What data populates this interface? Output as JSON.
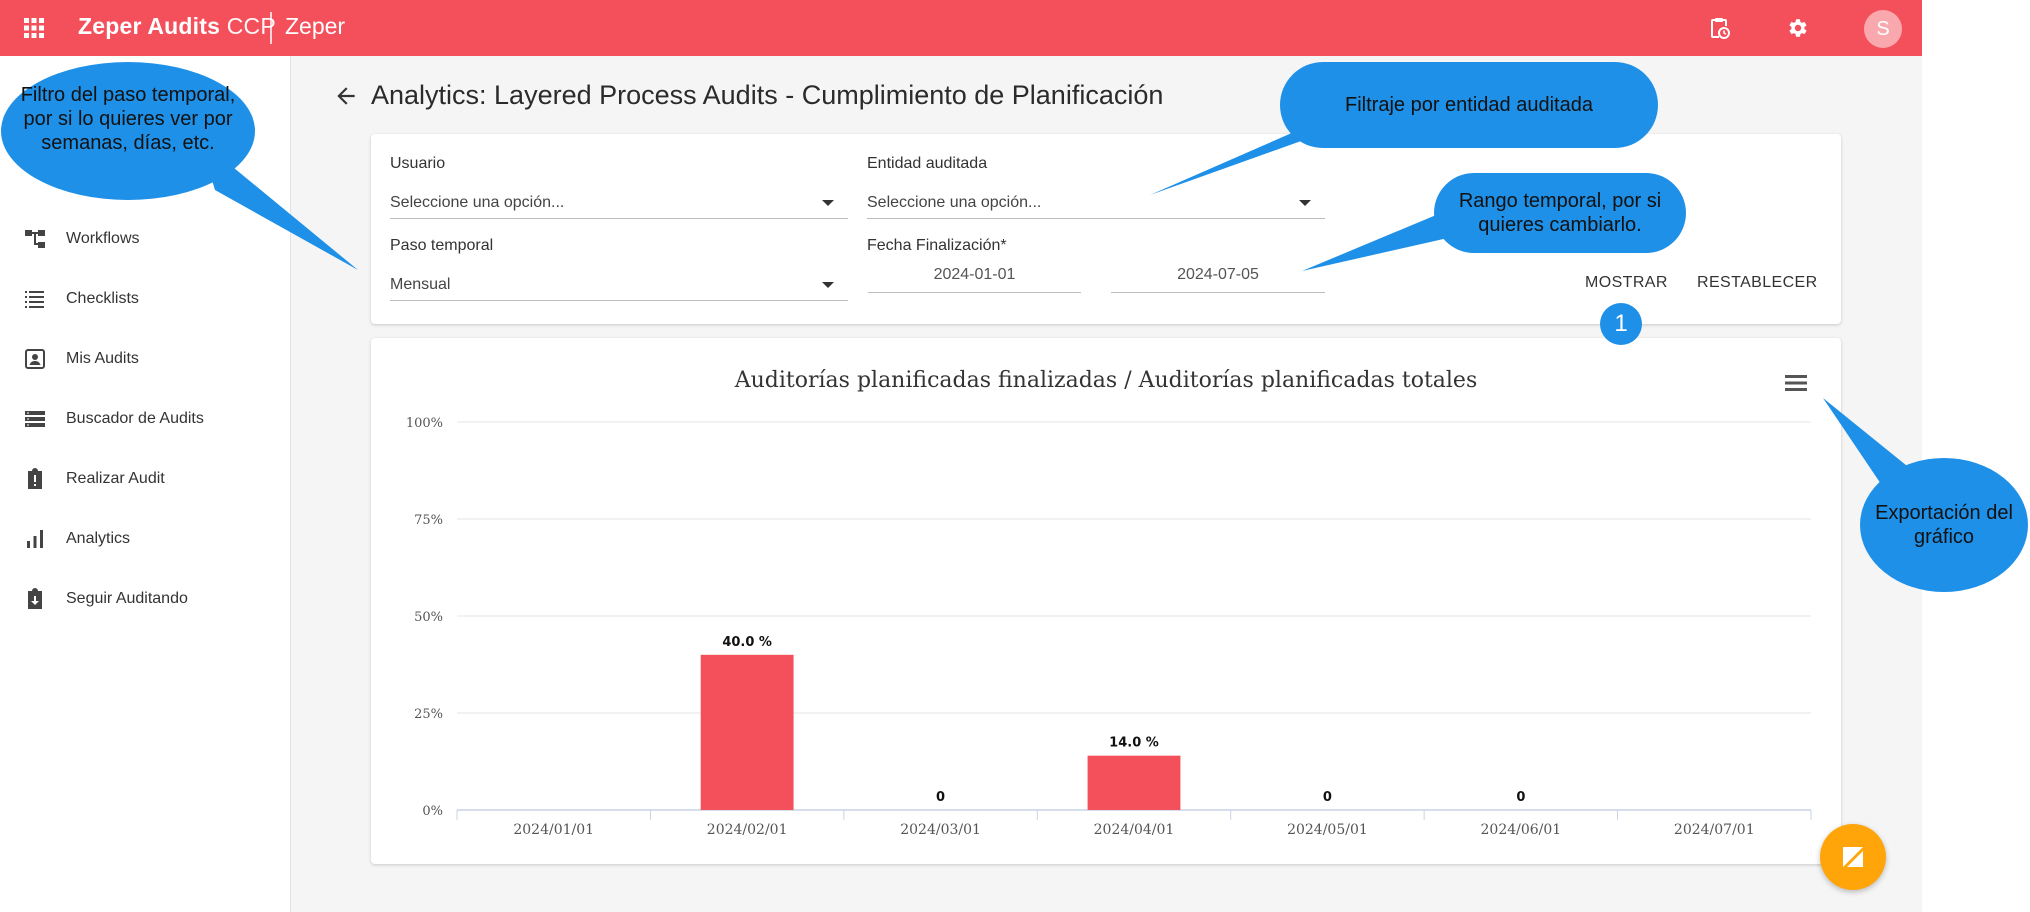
{
  "topbar": {
    "brand_bold": "Zeper Audits",
    "brand_light": "CCP",
    "org": "Zeper",
    "avatar_initial": "S",
    "color": "#f4505c"
  },
  "sidebar": {
    "items": [
      {
        "label": "Workflows",
        "icon": "workflow-icon"
      },
      {
        "label": "Checklists",
        "icon": "checklist-icon"
      },
      {
        "label": "Mis Audits",
        "icon": "profile-box-icon"
      },
      {
        "label": "Buscador de Audits",
        "icon": "list-storage-icon"
      },
      {
        "label": "Realizar Audit",
        "icon": "clipboard-alert-icon"
      },
      {
        "label": "Analytics",
        "icon": "bar-chart-icon"
      },
      {
        "label": "Seguir Auditando",
        "icon": "clipboard-down-icon"
      }
    ]
  },
  "page": {
    "title": "Analytics: Layered Process Audits - Cumplimiento de Planificación"
  },
  "filters": {
    "usuario_label": "Usuario",
    "usuario_value": "Seleccione una opción...",
    "entidad_label": "Entidad auditada",
    "entidad_value": "Seleccione una opción...",
    "paso_label": "Paso temporal",
    "paso_value": "Mensual",
    "fecha_label": "Fecha Finalización*",
    "fecha_desde": "2024-01-01",
    "fecha_hasta": "2024-07-05",
    "mostrar": "MOSTRAR",
    "restablecer": "RESTABLECER"
  },
  "chart_data": {
    "type": "bar",
    "title": "Auditorías planificadas finalizadas / Auditorías planificadas totales",
    "categories": [
      "2024/01/01",
      "2024/02/01",
      "2024/03/01",
      "2024/04/01",
      "2024/05/01",
      "2024/06/01",
      "2024/07/01"
    ],
    "values": [
      null,
      40.0,
      0,
      14.0,
      0,
      0,
      null
    ],
    "data_labels": [
      "",
      "40.0 %",
      "0",
      "14.0 %",
      "0",
      "0",
      ""
    ],
    "ylim": [
      0,
      100
    ],
    "yticks": [
      "0%",
      "25%",
      "50%",
      "75%",
      "100%"
    ],
    "grid": true,
    "bar_color": "#f4505c"
  },
  "callouts": {
    "paso": "Filtro del paso temporal, por si lo quieres ver por semanas, días, etc.",
    "entidad": "Filtraje por entidad auditada",
    "rango": "Rango temporal, por si quieres cambiarlo.",
    "export": "Exportación del gráfico",
    "badge": "1",
    "color": "#1e90e8"
  }
}
